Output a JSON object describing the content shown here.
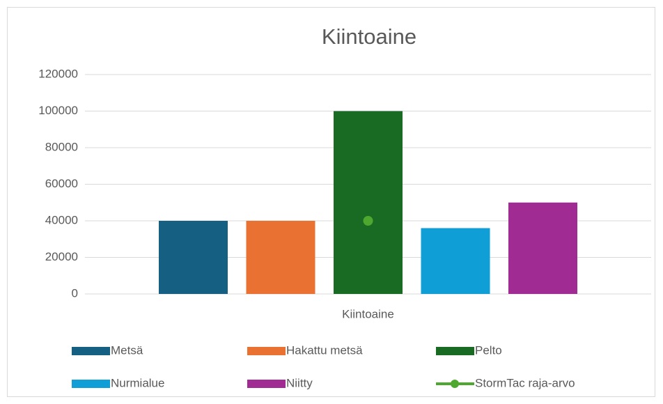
{
  "chart_data": {
    "type": "bar",
    "title": "Kiintoaine",
    "categories": [
      "Kiintoaine"
    ],
    "series": [
      {
        "name": "Metsä",
        "color": "#156082",
        "values": [
          40000
        ]
      },
      {
        "name": "Hakattu metsä",
        "color": "#e97132",
        "values": [
          40000
        ]
      },
      {
        "name": "Pelto",
        "color": "#196b24",
        "values": [
          100000
        ]
      },
      {
        "name": "Nurmialue",
        "color": "#0f9ed5",
        "values": [
          36000
        ]
      },
      {
        "name": "Niitty",
        "color": "#a02b93",
        "values": [
          50000
        ]
      },
      {
        "name": "StormTac raja-arvo",
        "color": "#4ea72e",
        "type": "line",
        "values": [
          40000
        ]
      }
    ],
    "ylim": [
      0,
      120000
    ],
    "yticks": [
      0,
      20000,
      40000,
      60000,
      80000,
      100000,
      120000
    ],
    "grid": true,
    "legend": "bottom"
  }
}
